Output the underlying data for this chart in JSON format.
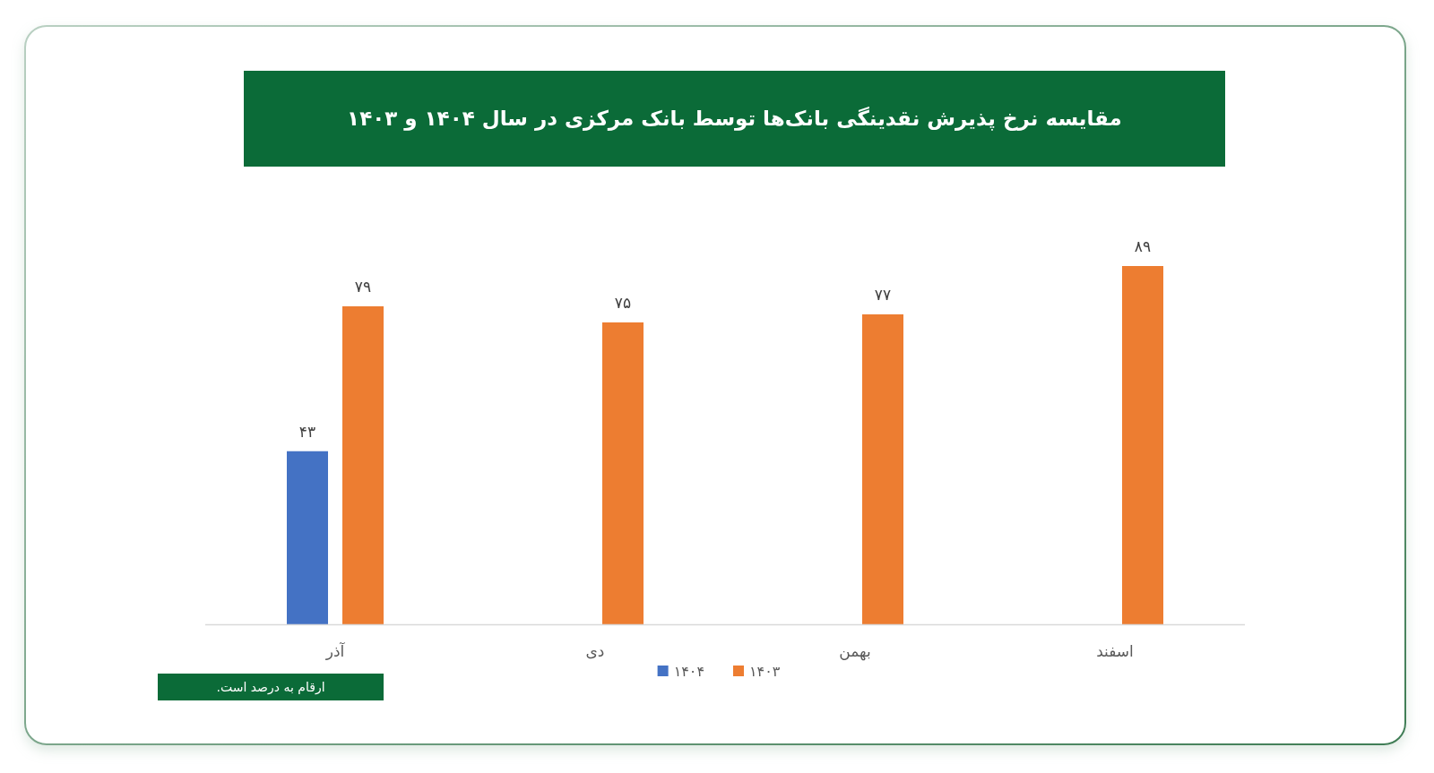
{
  "chart_data": {
    "type": "bar",
    "title": "مقایسه نرخ پذیرش نقدینگی بانک‌ها توسط بانک مرکزی در سال ۱۴۰۴ و ۱۴۰۳",
    "categories": [
      "آذر",
      "دی",
      "بهمن",
      "اسفند"
    ],
    "series": [
      {
        "name": "۱۴۰۴",
        "color": "#4472c4",
        "values": [
          43,
          null,
          null,
          null
        ],
        "value_labels": [
          "۴۳",
          null,
          null,
          null
        ]
      },
      {
        "name": "۱۴۰۳",
        "color": "#ed7d31",
        "values": [
          79,
          75,
          77,
          89
        ],
        "value_labels": [
          "۷۹",
          "۷۵",
          "۷۷",
          "۸۹"
        ]
      }
    ],
    "legend": "bottom",
    "annotations": [
      "ارقام به درصد است."
    ]
  }
}
